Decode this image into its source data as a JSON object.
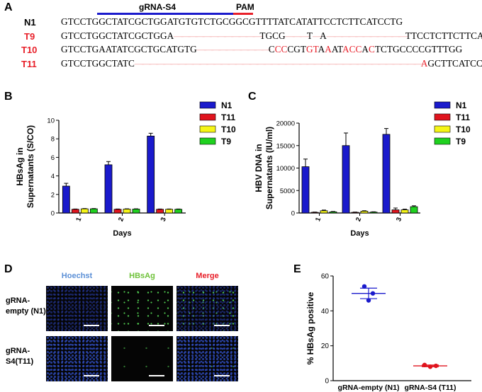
{
  "panels": {
    "A": "A",
    "B": "B",
    "C": "C",
    "D": "D",
    "E": "E"
  },
  "sequences": {
    "grna_label": "gRNA-S4",
    "pam_label": "PAM",
    "rows": [
      {
        "label": "N1",
        "label_color": "#000000",
        "segments": [
          {
            "t": "GTCCTGGCTATCGCTGGATGTGTCTGCGGCGTTTTATCATATTCCTCTTCATCCTG",
            "c": "blk"
          }
        ]
      },
      {
        "label": "T9",
        "label_color": "#e8202a",
        "segments": [
          {
            "t": "GTCCTGGCTATCGCTGGA",
            "c": "blk"
          },
          {
            "t": "————————————",
            "c": "dash"
          },
          {
            "t": "TGCG",
            "c": "blk"
          },
          {
            "t": "———",
            "c": "dash"
          },
          {
            "t": "T",
            "c": "blk"
          },
          {
            "t": "—",
            "c": "dash"
          },
          {
            "t": "A",
            "c": "blk"
          },
          {
            "t": "———————————",
            "c": "dash"
          },
          {
            "t": "TTCCTCTTCTTCATG",
            "c": "blk"
          }
        ]
      },
      {
        "label": "T10",
        "label_color": "#e8202a",
        "segments": [
          {
            "t": "GTCCTGAATATCGCTGCATGTG",
            "c": "blk"
          },
          {
            "t": "——————————",
            "c": "dash"
          },
          {
            "t": "C",
            "c": "blk"
          },
          {
            "t": "CC",
            "c": "red"
          },
          {
            "t": "CGT",
            "c": "blk"
          },
          {
            "t": "GT",
            "c": "red"
          },
          {
            "t": "A",
            "c": "blk"
          },
          {
            "t": "A",
            "c": "red"
          },
          {
            "t": "AT",
            "c": "blk"
          },
          {
            "t": "ACC",
            "c": "red"
          },
          {
            "t": "A",
            "c": "blk"
          },
          {
            "t": "C",
            "c": "red"
          },
          {
            "t": "TCTGCCCCGTTTGG",
            "c": "blk"
          }
        ]
      },
      {
        "label": "T11",
        "label_color": "#e8202a",
        "segments": [
          {
            "t": "GTCCTGGCTATC",
            "c": "blk"
          },
          {
            "t": "————————————————————————————————————————",
            "c": "dash"
          },
          {
            "t": "A",
            "c": "red"
          },
          {
            "t": "GCTTCATCCTG",
            "c": "blk"
          }
        ]
      }
    ]
  },
  "chart_data": [
    {
      "id": "B",
      "type": "bar",
      "ylabel": "HBsAg in\nSupernatants (S/CO)",
      "ylabel_lines": [
        "HBsAg in",
        "Supernatants (S/CO)"
      ],
      "xlabel": "Days",
      "categories": [
        "1",
        "2",
        "3"
      ],
      "ylim": [
        0,
        10
      ],
      "yticks": [
        0,
        2,
        4,
        6,
        8,
        10
      ],
      "legend_position": "right",
      "series": [
        {
          "name": "N1",
          "color": "#1a1acc",
          "values": [
            2.9,
            5.2,
            8.3
          ],
          "errors": [
            0.3,
            0.35,
            0.3
          ]
        },
        {
          "name": "T11",
          "color": "#e0141e",
          "values": [
            0.4,
            0.4,
            0.4
          ],
          "errors": [
            0.03,
            0.03,
            0.03
          ]
        },
        {
          "name": "T10",
          "color": "#f5f516",
          "values": [
            0.45,
            0.42,
            0.4
          ],
          "errors": [
            0.03,
            0.03,
            0.03
          ]
        },
        {
          "name": "T9",
          "color": "#1fd11f",
          "values": [
            0.45,
            0.42,
            0.4
          ],
          "errors": [
            0.03,
            0.03,
            0.03
          ]
        }
      ]
    },
    {
      "id": "C",
      "type": "bar",
      "ylabel": "HBV DNA in\nSupernatants (IU/ml)",
      "ylabel_lines": [
        "HBV DNA in",
        "Supernatants (IU/ml)"
      ],
      "xlabel": "Days",
      "categories": [
        "1",
        "2",
        "3"
      ],
      "ylim": [
        0,
        20000
      ],
      "yticks": [
        0,
        5000,
        10000,
        15000,
        20000
      ],
      "legend_position": "right",
      "series": [
        {
          "name": "N1",
          "color": "#1a1acc",
          "values": [
            10300,
            15000,
            17500
          ],
          "errors": [
            1700,
            2800,
            1300
          ]
        },
        {
          "name": "T11",
          "color": "#e0141e",
          "values": [
            150,
            150,
            700
          ],
          "errors": [
            50,
            50,
            400
          ]
        },
        {
          "name": "T10",
          "color": "#f5f516",
          "values": [
            500,
            400,
            700
          ],
          "errors": [
            150,
            100,
            150
          ]
        },
        {
          "name": "T9",
          "color": "#1fd11f",
          "values": [
            250,
            200,
            1400
          ],
          "errors": [
            80,
            60,
            200
          ]
        }
      ]
    },
    {
      "id": "E",
      "type": "scatter",
      "ylabel": "% HBsAg positive",
      "categories": [
        "gRNA-empty (N1)",
        "gRNA-S4 (T11)"
      ],
      "ylim": [
        0,
        60
      ],
      "yticks": [
        0,
        20,
        40,
        60
      ],
      "series": [
        {
          "name": "gRNA-empty (N1)",
          "color": "#1a1acc",
          "points": [
            54,
            50,
            46
          ],
          "mean": 50,
          "sem": 3
        },
        {
          "name": "gRNA-S4 (T11)",
          "color": "#e0141e",
          "points": [
            9,
            8,
            8.5
          ],
          "mean": 8.5,
          "sem": 0.5
        }
      ]
    }
  ],
  "micrographs": {
    "columns": [
      "Hoechst",
      "HBsAg",
      "Merge"
    ],
    "column_colors": [
      "#5b8fd6",
      "#6fc23a",
      "#e8202a"
    ],
    "rows": [
      {
        "label_lines": [
          "gRNA-",
          "empty (N1)"
        ]
      },
      {
        "label_lines": [
          "gRNA-",
          "S4(T11)"
        ]
      }
    ]
  }
}
